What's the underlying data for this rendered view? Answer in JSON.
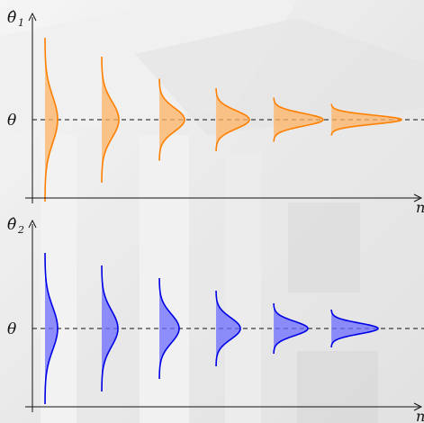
{
  "panels": [
    {
      "y_label": "θ̂",
      "y_label_sub": "1",
      "ref_label": "θ",
      "x_label": "n"
    },
    {
      "y_label": "θ̂",
      "y_label_sub": "2",
      "ref_label": "θ",
      "x_label": "n"
    }
  ]
}
